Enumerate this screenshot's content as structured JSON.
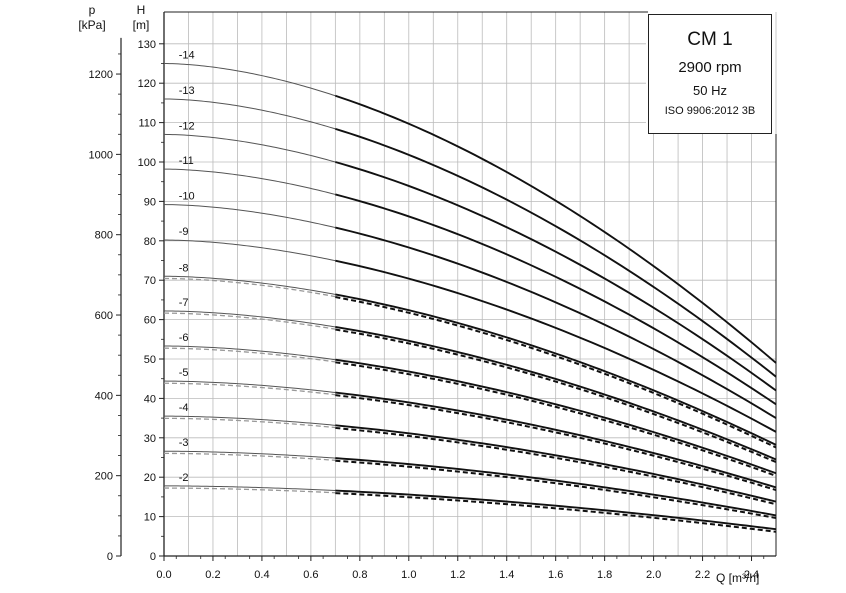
{
  "chart_data": {
    "type": "line",
    "legend": {
      "model": "CM 1",
      "speed": "2900 rpm",
      "frequency": "50 Hz",
      "standard": "ISO 9906:2012 3B",
      "placement": "top-right"
    },
    "xlabel": "Q [m³/h]",
    "ylabel_left_outer": [
      "p",
      "[kPa]"
    ],
    "ylabel_left_inner": [
      "H",
      "[m]"
    ],
    "xlim": [
      0,
      2.5
    ],
    "ylim": [
      0,
      132
    ],
    "x_ticks": [
      0.0,
      0.2,
      0.4,
      0.6,
      0.8,
      1.0,
      1.2,
      1.4,
      1.6,
      1.8,
      2.0,
      2.2,
      2.4
    ],
    "x_tick_labels": [
      "0.0",
      "0.2",
      "0.4",
      "0.6",
      "0.8",
      "1.0",
      "1.2",
      "1.4",
      "1.6",
      "1.8",
      "2.0",
      "2.2",
      "2.4"
    ],
    "h_ticks": [
      0,
      10,
      20,
      30,
      40,
      50,
      60,
      70,
      80,
      90,
      100,
      110,
      120,
      130
    ],
    "h_tick_labels": [
      "0",
      "10",
      "20",
      "30",
      "40",
      "50",
      "60",
      "70",
      "80",
      "90",
      "100",
      "110",
      "120",
      "130"
    ],
    "p_ticks_kpa": [
      0,
      200,
      400,
      600,
      800,
      1000,
      1200
    ],
    "p_tick_labels": [
      "0",
      "200",
      "400",
      "600",
      "800",
      "1000",
      "1200"
    ],
    "kpa_per_m": 9.81,
    "grid": true,
    "operating_range_start_q": 0.7,
    "q_max": 2.5,
    "series": [
      {
        "name": "-2",
        "h0": 17.8,
        "h_end": 6.8,
        "dashed": true
      },
      {
        "name": "-3",
        "h0": 26.6,
        "h_end": 10.3,
        "dashed": true
      },
      {
        "name": "-4",
        "h0": 35.5,
        "h_end": 13.8,
        "dashed": true
      },
      {
        "name": "-5",
        "h0": 44.4,
        "h_end": 17.4,
        "dashed": true
      },
      {
        "name": "-6",
        "h0": 53.3,
        "h_end": 21.0,
        "dashed": true
      },
      {
        "name": "-7",
        "h0": 62.2,
        "h_end": 24.5,
        "dashed": true
      },
      {
        "name": "-8",
        "h0": 71.0,
        "h_end": 28.2,
        "dashed": true
      },
      {
        "name": "-9",
        "h0": 80.2,
        "h_end": 31.5,
        "dashed": false
      },
      {
        "name": "-10",
        "h0": 89.2,
        "h_end": 35.0,
        "dashed": false
      },
      {
        "name": "-11",
        "h0": 98.2,
        "h_end": 38.5,
        "dashed": false
      },
      {
        "name": "-12",
        "h0": 107.0,
        "h_end": 42.0,
        "dashed": false
      },
      {
        "name": "-13",
        "h0": 116.0,
        "h_end": 45.5,
        "dashed": false
      },
      {
        "name": "-14",
        "h0": 125.0,
        "h_end": 49.0,
        "dashed": false
      }
    ]
  }
}
